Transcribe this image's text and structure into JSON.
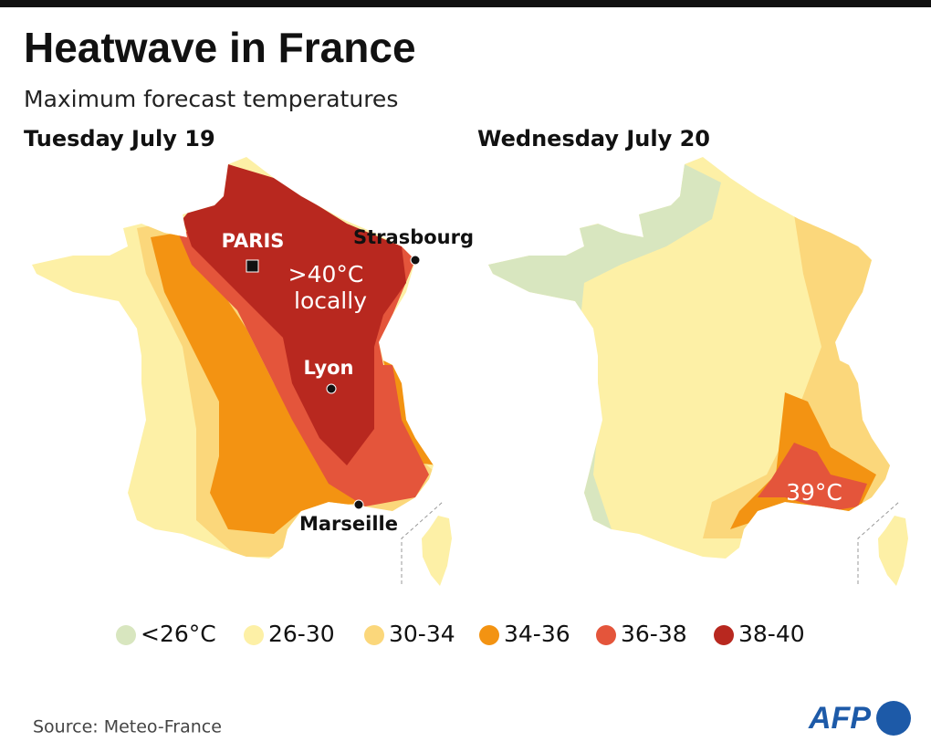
{
  "header": {
    "title": "Heatwave in France",
    "subtitle": "Maximum forecast temperatures"
  },
  "maps": [
    {
      "label": "Tuesday July 19",
      "note": [
        ">40°C",
        "locally"
      ],
      "cities": [
        "PARIS",
        "Strasbourg",
        "Lyon",
        "Marseille"
      ]
    },
    {
      "label": "Wednesday July 20",
      "note": [
        "39°C"
      ]
    }
  ],
  "legend": [
    {
      "label": "<26°C",
      "color": "#d8e6bf"
    },
    {
      "label": "26-30",
      "color": "#fdf0a6"
    },
    {
      "label": "30-34",
      "color": "#fbd77b"
    },
    {
      "label": "34-36",
      "color": "#f39312"
    },
    {
      "label": "36-38",
      "color": "#e4553b"
    },
    {
      "label": "38-40",
      "color": "#b8281f"
    }
  ],
  "footer": {
    "source": "Source: Meteo-France",
    "logo": "AFP"
  }
}
